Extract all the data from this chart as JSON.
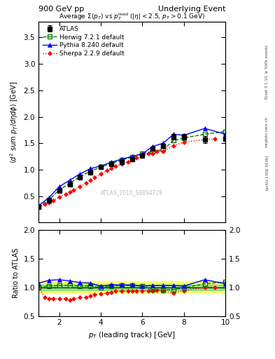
{
  "title_left": "900 GeV pp",
  "title_right": "Underlying Event",
  "panel_title": "Average $\\Sigma(p_T)$ vs $p_T^{\\mathrm{lead}}$ ($|\\eta| < 2.5$, $p_T > 0.1$ GeV)",
  "watermark": "ATLAS_2010_S8894728",
  "right_label_top": "Rivet 3.1.10, ≥ 500k events",
  "arxiv_label": "[arXiv:1306.3436]",
  "mcplots_label": "mcplots.cern.ch",
  "xlabel": "$p_T$ (leading track) [GeV]",
  "ylabel_main": "$\\langle d^2$ sum $p_T/d\\eta d\\phi\\rangle$ [GeV]",
  "ylabel_ratio": "Ratio to ATLAS",
  "xlim": [
    1.0,
    10.0
  ],
  "ylim_main": [
    0.0,
    3.8
  ],
  "ylim_ratio": [
    0.5,
    2.0
  ],
  "atlas_x": [
    1.0,
    1.5,
    2.0,
    2.5,
    3.0,
    3.5,
    4.0,
    4.5,
    5.0,
    5.5,
    6.0,
    6.5,
    7.0,
    7.5,
    8.0,
    9.0,
    10.0
  ],
  "atlas_y": [
    0.3,
    0.42,
    0.6,
    0.72,
    0.85,
    0.95,
    1.05,
    1.1,
    1.15,
    1.2,
    1.27,
    1.4,
    1.45,
    1.62,
    1.62,
    1.57,
    1.58
  ],
  "atlas_yerr": [
    0.02,
    0.02,
    0.02,
    0.02,
    0.02,
    0.02,
    0.02,
    0.02,
    0.02,
    0.03,
    0.03,
    0.04,
    0.04,
    0.05,
    0.05,
    0.06,
    0.08
  ],
  "atlas_color": "#000000",
  "herwig_x": [
    1.0,
    1.5,
    2.0,
    2.5,
    3.0,
    3.5,
    4.0,
    4.5,
    5.0,
    5.5,
    6.0,
    6.5,
    7.0,
    7.5,
    8.0,
    9.0,
    10.0
  ],
  "herwig_y": [
    0.3,
    0.43,
    0.62,
    0.74,
    0.87,
    0.97,
    1.05,
    1.12,
    1.18,
    1.24,
    1.3,
    1.35,
    1.38,
    1.55,
    1.6,
    1.67,
    1.72
  ],
  "herwig_color": "#007700",
  "pythia_x": [
    1.0,
    1.5,
    2.0,
    2.5,
    3.0,
    3.5,
    4.0,
    4.5,
    5.0,
    5.5,
    6.0,
    6.5,
    7.0,
    7.5,
    8.0,
    9.0,
    10.0
  ],
  "pythia_y": [
    0.32,
    0.47,
    0.68,
    0.8,
    0.92,
    1.02,
    1.07,
    1.14,
    1.2,
    1.25,
    1.3,
    1.44,
    1.5,
    1.67,
    1.65,
    1.78,
    1.67
  ],
  "pythia_color": "#0000ff",
  "sherpa_x": [
    1.0,
    1.3,
    1.5,
    1.7,
    2.0,
    2.3,
    2.5,
    2.7,
    3.0,
    3.3,
    3.5,
    3.7,
    4.0,
    4.3,
    4.5,
    4.7,
    5.0,
    5.3,
    5.5,
    5.7,
    6.0,
    6.3,
    6.5,
    6.7,
    7.0,
    7.5,
    8.0,
    9.0,
    9.5
  ],
  "sherpa_y": [
    0.3,
    0.35,
    0.38,
    0.42,
    0.48,
    0.54,
    0.58,
    0.62,
    0.68,
    0.75,
    0.8,
    0.85,
    0.92,
    0.98,
    1.02,
    1.06,
    1.1,
    1.15,
    1.18,
    1.22,
    1.27,
    1.3,
    1.31,
    1.35,
    1.35,
    1.45,
    1.52,
    1.57,
    1.58
  ],
  "sherpa_color": "#ff0000",
  "ratio_herwig_x": [
    1.0,
    1.5,
    2.0,
    2.5,
    3.0,
    3.5,
    4.0,
    4.5,
    5.0,
    5.5,
    6.0,
    6.5,
    7.0,
    7.5,
    8.0,
    9.0,
    10.0
  ],
  "ratio_herwig_y": [
    1.0,
    1.02,
    1.03,
    1.03,
    1.02,
    1.02,
    1.0,
    1.02,
    1.03,
    1.03,
    1.02,
    0.96,
    0.95,
    0.96,
    0.99,
    1.06,
    1.09
  ],
  "ratio_pythia_x": [
    1.0,
    1.5,
    2.0,
    2.5,
    3.0,
    3.5,
    4.0,
    4.5,
    5.0,
    5.5,
    6.0,
    6.5,
    7.0,
    7.5,
    8.0,
    9.0,
    10.0
  ],
  "ratio_pythia_y": [
    1.07,
    1.12,
    1.13,
    1.11,
    1.08,
    1.07,
    1.02,
    1.04,
    1.04,
    1.04,
    1.02,
    1.03,
    1.03,
    1.03,
    1.02,
    1.13,
    1.06
  ],
  "ratio_sherpa_x": [
    1.0,
    1.3,
    1.5,
    1.7,
    2.0,
    2.3,
    2.5,
    2.7,
    3.0,
    3.3,
    3.5,
    3.7,
    4.0,
    4.3,
    4.5,
    4.7,
    5.0,
    5.3,
    5.5,
    5.7,
    6.0,
    6.3,
    6.5,
    6.7,
    7.0,
    7.5,
    8.0,
    9.0,
    9.5
  ],
  "ratio_sherpa_y": [
    1.0,
    0.83,
    0.8,
    0.8,
    0.8,
    0.8,
    0.78,
    0.8,
    0.82,
    0.82,
    0.85,
    0.87,
    0.88,
    0.9,
    0.91,
    0.93,
    0.93,
    0.93,
    0.93,
    0.93,
    0.94,
    0.94,
    0.93,
    0.95,
    0.93,
    0.9,
    0.94,
    1.0,
    1.0
  ],
  "band_yellow_lo": 0.9,
  "band_yellow_hi": 1.1,
  "band_green_lo": 0.95,
  "band_green_hi": 1.05,
  "legend_entries": [
    "ATLAS",
    "Herwig 7.2.1 default",
    "Pythia 8.240 default",
    "Sherpa 2.2.9 default"
  ]
}
